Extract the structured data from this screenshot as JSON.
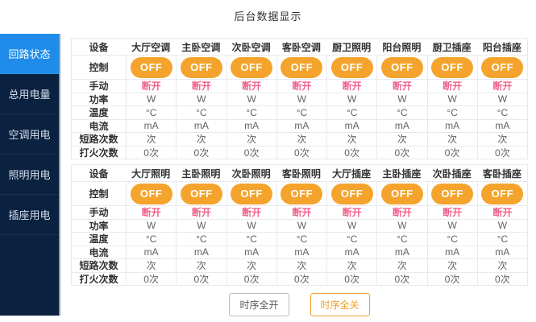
{
  "title": "后台数据显示",
  "sidebar": {
    "items": [
      {
        "label": "回路状态",
        "active": true
      },
      {
        "label": "总用电量",
        "active": false
      },
      {
        "label": "空调用电",
        "active": false
      },
      {
        "label": "照明用电",
        "active": false
      },
      {
        "label": "插座用电",
        "active": false
      }
    ]
  },
  "colors": {
    "sidebar_bg": "#0b2140",
    "active_item_blue": "#1f8ce9",
    "off_button_orange": "#f4a42c",
    "manual_state_pink": "#f0618c",
    "seq_close_orange": "#efa12d"
  },
  "tables": [
    {
      "header": [
        "设备",
        "大厅空调",
        "主卧空调",
        "次卧空调",
        "客卧空调",
        "厨卫照明",
        "阳台照明",
        "厨卫插座",
        "阳台插座"
      ],
      "rows": [
        {
          "key": "control",
          "label": "控制",
          "type": "button",
          "values": [
            "OFF",
            "OFF",
            "OFF",
            "OFF",
            "OFF",
            "OFF",
            "OFF",
            "OFF"
          ]
        },
        {
          "key": "manual",
          "label": "手动",
          "type": "pink",
          "values": [
            "断开",
            "断开",
            "断开",
            "断开",
            "断开",
            "断开",
            "断开",
            "断开"
          ]
        },
        {
          "key": "power",
          "label": "功率",
          "type": "text",
          "values": [
            "W",
            "W",
            "W",
            "W",
            "W",
            "W",
            "W",
            "W"
          ]
        },
        {
          "key": "temperature",
          "label": "温度",
          "type": "text",
          "values": [
            "°C",
            "°C",
            "°C",
            "°C",
            "°C",
            "°C",
            "°C",
            "°C"
          ]
        },
        {
          "key": "current",
          "label": "电流",
          "type": "text",
          "values": [
            "mA",
            "mA",
            "mA",
            "mA",
            "mA",
            "mA",
            "mA",
            "mA"
          ]
        },
        {
          "key": "short-circuit-count",
          "label": "短路次数",
          "type": "text",
          "values": [
            "次",
            "次",
            "次",
            "次",
            "次",
            "次",
            "次",
            "次"
          ]
        },
        {
          "key": "ignition-count",
          "label": "打火次数",
          "type": "text",
          "values": [
            "0次",
            "0次",
            "0次",
            "0次",
            "0次",
            "0次",
            "0次",
            "0次"
          ]
        }
      ]
    },
    {
      "header": [
        "设备",
        "大厅照明",
        "主卧照明",
        "次卧照明",
        "客卧照明",
        "大厅插座",
        "主卧插座",
        "次卧插座",
        "客卧插座"
      ],
      "rows": [
        {
          "key": "control",
          "label": "控制",
          "type": "button",
          "values": [
            "OFF",
            "OFF",
            "OFF",
            "OFF",
            "OFF",
            "OFF",
            "OFF",
            "OFF"
          ]
        },
        {
          "key": "manual",
          "label": "手动",
          "type": "pink",
          "values": [
            "断开",
            "断开",
            "断开",
            "断开",
            "断开",
            "断开",
            "断开",
            "断开"
          ]
        },
        {
          "key": "power",
          "label": "功率",
          "type": "text",
          "values": [
            "W",
            "W",
            "W",
            "W",
            "W",
            "W",
            "W",
            "W"
          ]
        },
        {
          "key": "temperature",
          "label": "温度",
          "type": "text",
          "values": [
            "°C",
            "°C",
            "°C",
            "°C",
            "°C",
            "°C",
            "°C",
            "°C"
          ]
        },
        {
          "key": "current",
          "label": "电流",
          "type": "text",
          "values": [
            "mA",
            "mA",
            "mA",
            "mA",
            "mA",
            "mA",
            "mA",
            "mA"
          ]
        },
        {
          "key": "short-circuit-count",
          "label": "短路次数",
          "type": "text",
          "values": [
            "次",
            "次",
            "次",
            "次",
            "次",
            "次",
            "次",
            "次"
          ]
        },
        {
          "key": "ignition-count",
          "label": "打火次数",
          "type": "text",
          "values": [
            "0次",
            "0次",
            "0次",
            "0次",
            "0次",
            "0次",
            "0次",
            "0次"
          ]
        }
      ]
    }
  ],
  "buttons": {
    "sequence_all_on": "时序全开",
    "sequence_all_off": "时序全关"
  }
}
